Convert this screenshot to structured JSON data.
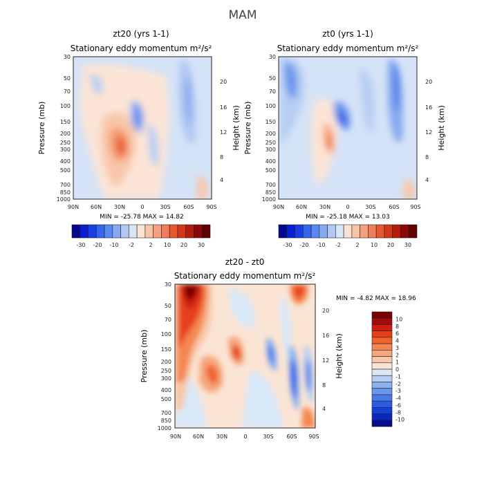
{
  "figure_title": "MAM",
  "chart_data": [
    {
      "type": "heatmap",
      "id": "zt20",
      "title": "zt20 (yrs 1-1)",
      "subtitle": "Stationary eddy momentum m²/s²",
      "xlabel": "",
      "ylabel": "Pressure (mb)",
      "y2label": "Height (km)",
      "x_ticks": [
        "90N",
        "60N",
        "30N",
        "0",
        "30S",
        "60S",
        "90S"
      ],
      "y_ticks": [
        "30",
        "50",
        "70",
        "100",
        "150",
        "200",
        "250",
        "300",
        "400",
        "500",
        "700",
        "850",
        "1000"
      ],
      "y2_ticks": [
        "20",
        "16",
        "12",
        "8",
        "4"
      ],
      "stats": "MIN = -25.78   MAX = 14.82",
      "min": -25.78,
      "max": 14.82,
      "colorbar": {
        "orientation": "horizontal",
        "labels": [
          "-30",
          "-20",
          "-10",
          "-2",
          "2",
          "10",
          "20",
          "30"
        ],
        "colors": [
          "#04088c",
          "#0a1ed2",
          "#1a3ee6",
          "#3466f0",
          "#5a88f2",
          "#86a8f0",
          "#b0c8f2",
          "#d7e5f7",
          "#fbe3d4",
          "#f9c3a8",
          "#f6a081",
          "#f17c5a",
          "#e8582f",
          "#d4361a",
          "#b41c0b",
          "#8c0806",
          "#5e0202"
        ]
      }
    },
    {
      "type": "heatmap",
      "id": "zt0",
      "title": "zt0 (yrs 1-1)",
      "subtitle": "Stationary eddy momentum m²/s²",
      "xlabel": "",
      "ylabel": "Pressure (mb)",
      "y2label": "Height (km)",
      "x_ticks": [
        "90N",
        "60N",
        "30N",
        "0",
        "30S",
        "60S",
        "90S"
      ],
      "y_ticks": [
        "30",
        "50",
        "70",
        "100",
        "150",
        "200",
        "250",
        "300",
        "400",
        "500",
        "700",
        "850",
        "1000"
      ],
      "y2_ticks": [
        "20",
        "16",
        "12",
        "8",
        "4"
      ],
      "stats": "MIN = -25.18   MAX = 13.03",
      "min": -25.18,
      "max": 13.03,
      "colorbar": {
        "orientation": "horizontal",
        "labels": [
          "-30",
          "-20",
          "-10",
          "-2",
          "2",
          "10",
          "20",
          "30"
        ],
        "colors": [
          "#04088c",
          "#0a1ed2",
          "#1a3ee6",
          "#3466f0",
          "#5a88f2",
          "#86a8f0",
          "#b0c8f2",
          "#d7e5f7",
          "#fbe3d4",
          "#f9c3a8",
          "#f6a081",
          "#f17c5a",
          "#e8582f",
          "#d4361a",
          "#b41c0b",
          "#8c0806",
          "#5e0202"
        ]
      }
    },
    {
      "type": "heatmap",
      "id": "diff",
      "title": "zt20 - zt0",
      "subtitle": "Stationary eddy momentum m²/s²",
      "xlabel": "",
      "ylabel": "Pressure (mb)",
      "y2label": "Height (km)",
      "x_ticks": [
        "90N",
        "60N",
        "30N",
        "0",
        "30S",
        "60S",
        "90S"
      ],
      "y_ticks": [
        "30",
        "50",
        "70",
        "100",
        "150",
        "200",
        "250",
        "300",
        "400",
        "500",
        "700",
        "850",
        "1000"
      ],
      "y2_ticks": [
        "20",
        "16",
        "12",
        "8",
        "4"
      ],
      "stats": "MIN =  -4.82   MAX =  18.96",
      "min": -4.82,
      "max": 18.96,
      "colorbar": {
        "orientation": "vertical",
        "labels": [
          "10",
          "8",
          "6",
          "4",
          "3",
          "2",
          "1",
          "0",
          "-1",
          "-2",
          "-3",
          "-4",
          "-6",
          "-8",
          "-10"
        ],
        "colors": [
          "#7a0000",
          "#a50a0a",
          "#cc1f0f",
          "#e6401a",
          "#f0632e",
          "#f4874f",
          "#f6a67c",
          "#f8c6a8",
          "#fae4d4",
          "#d9e8f8",
          "#b7cef2",
          "#8cb0ee",
          "#6a95ec",
          "#4878ea",
          "#2a5ce6",
          "#1440d8",
          "#0a26c0",
          "#050e8a"
        ]
      }
    }
  ]
}
